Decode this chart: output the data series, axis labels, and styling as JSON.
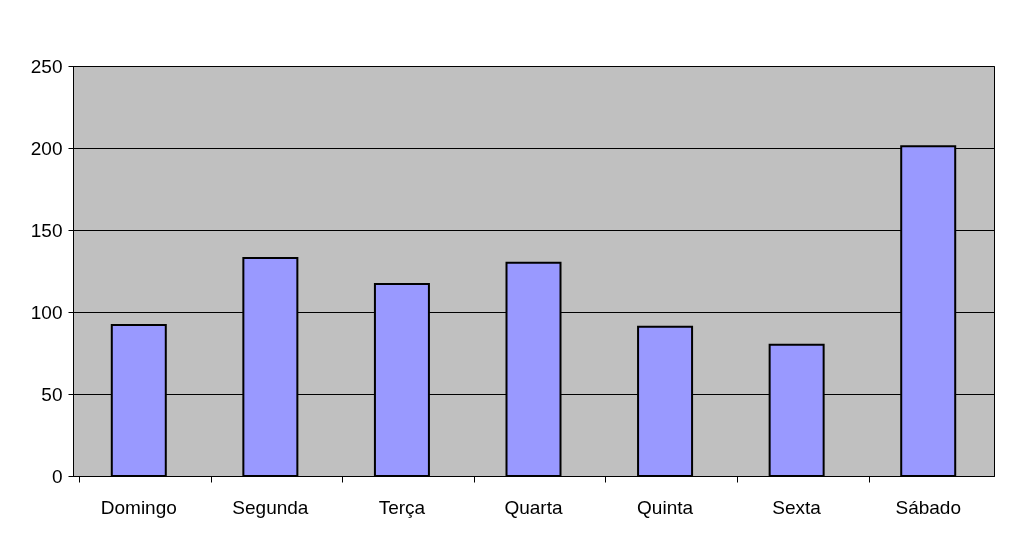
{
  "chart_data": {
    "type": "bar",
    "categories": [
      "Domingo",
      "Segunda",
      "Terça",
      "Quarta",
      "Quinta",
      "Sexta",
      "Sábado"
    ],
    "values": [
      92,
      133,
      117,
      130,
      91,
      80,
      201
    ],
    "color": "#9999ff",
    "ylim": [
      0,
      250
    ],
    "yticks": [
      0,
      50,
      100,
      150,
      200,
      250
    ],
    "grid": "y"
  }
}
